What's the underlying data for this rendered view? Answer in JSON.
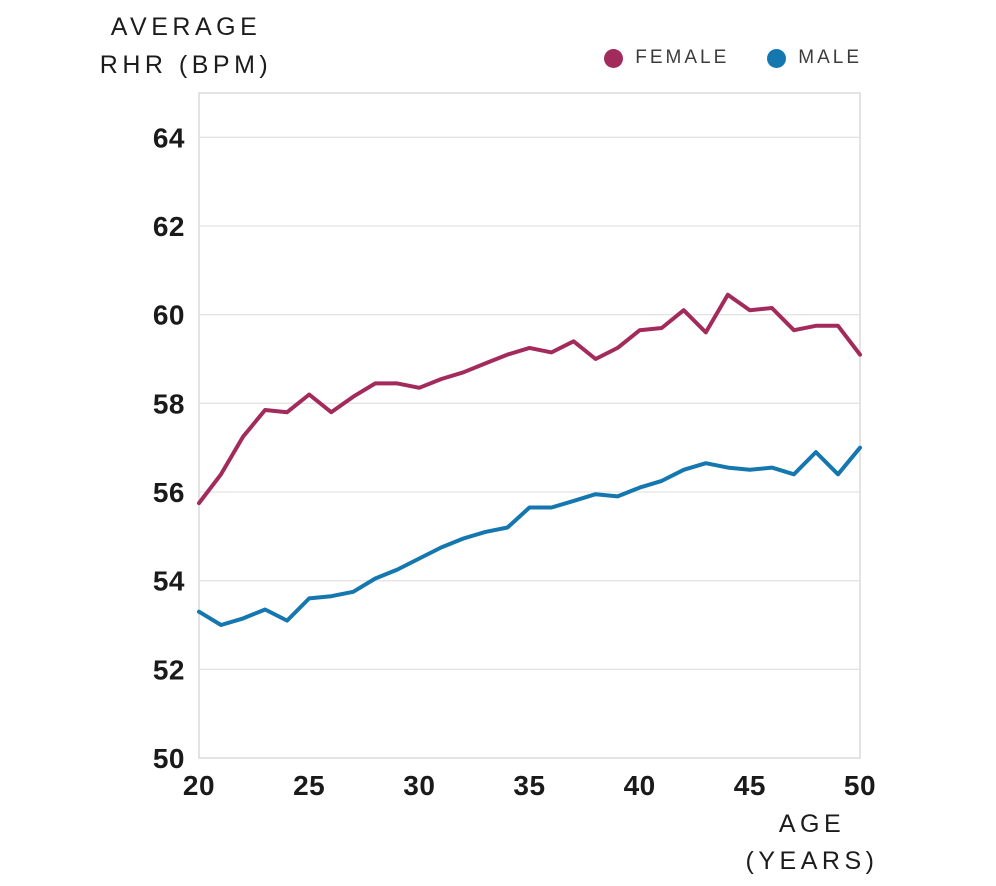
{
  "y_axis_title": {
    "line1": "AVERAGE",
    "line2": "RHR (BPM)"
  },
  "x_axis_title": {
    "line1": "AGE",
    "line2": "(YEARS)"
  },
  "legend": {
    "items": [
      {
        "label": "FEMALE",
        "color": "#a32b5c"
      },
      {
        "label": "MALE",
        "color": "#1577b0"
      }
    ]
  },
  "colors": {
    "background": "#ffffff",
    "plot_border": "#dadada",
    "gridline": "#e4e4e4",
    "tick_text": "#1a1a1a",
    "axis_title_text": "#1c1c1c",
    "legend_text": "#3c3c3c",
    "female_line": "#a32b5c",
    "male_line": "#1577b0"
  },
  "chart_data": {
    "type": "line",
    "title": "",
    "xlabel": "AGE (YEARS)",
    "ylabel": "AVERAGE RHR (BPM)",
    "x": [
      20,
      21,
      22,
      23,
      24,
      25,
      26,
      27,
      28,
      29,
      30,
      31,
      32,
      33,
      34,
      35,
      36,
      37,
      38,
      39,
      40,
      41,
      42,
      43,
      44,
      45,
      46,
      47,
      48,
      49,
      50
    ],
    "series": [
      {
        "name": "FEMALE",
        "color": "#a32b5c",
        "values": [
          55.75,
          56.4,
          57.25,
          57.85,
          57.8,
          58.2,
          57.8,
          58.15,
          58.45,
          58.45,
          58.35,
          58.55,
          58.7,
          58.9,
          59.1,
          59.25,
          59.15,
          59.4,
          59.0,
          59.25,
          59.65,
          59.7,
          60.1,
          59.6,
          60.45,
          60.1,
          60.15,
          59.65,
          59.75,
          59.75,
          59.1
        ]
      },
      {
        "name": "MALE",
        "color": "#1577b0",
        "values": [
          53.3,
          53.0,
          53.15,
          53.35,
          53.1,
          53.6,
          53.65,
          53.75,
          54.05,
          54.25,
          54.5,
          54.75,
          54.95,
          55.1,
          55.2,
          55.65,
          55.65,
          55.8,
          55.95,
          55.9,
          56.1,
          56.25,
          56.5,
          56.65,
          56.55,
          56.5,
          56.55,
          56.4,
          56.9,
          56.4,
          57.0
        ]
      }
    ],
    "xlim": [
      20,
      50
    ],
    "ylim": [
      50,
      65
    ],
    "xticks": [
      20,
      25,
      30,
      35,
      40,
      45,
      50
    ],
    "yticks": [
      50,
      52,
      54,
      56,
      58,
      60,
      62,
      64
    ],
    "grid": "horizontal",
    "legend_position": "top-right"
  }
}
